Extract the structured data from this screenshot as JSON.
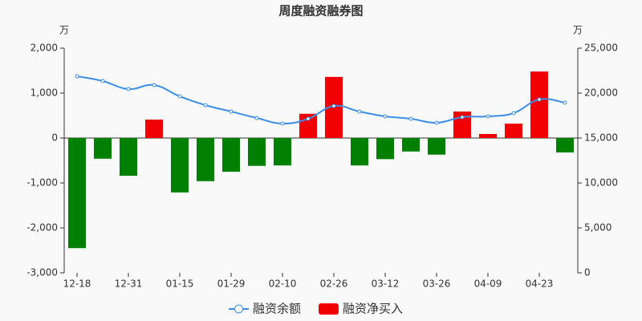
{
  "chart_data": {
    "type": "bar_line",
    "title": "周度融资融券图",
    "y_unit": "万",
    "y2_unit": "万",
    "categories": [
      "12-18",
      null,
      "12-31",
      null,
      "01-15",
      null,
      "01-29",
      null,
      "02-10",
      null,
      "02-26",
      null,
      "03-12",
      null,
      "03-26",
      null,
      "04-09",
      null,
      "04-23",
      null
    ],
    "series": [
      {
        "name": "融资余额",
        "type": "line",
        "axis": "y2",
        "color": "#3a8ee6",
        "values": [
          21870,
          21340,
          20450,
          20890,
          19640,
          18660,
          17950,
          17230,
          16610,
          17140,
          18570,
          17950,
          17410,
          17140,
          16700,
          17320,
          17410,
          17770,
          19290,
          18930
        ]
      },
      {
        "name": "融资净买入",
        "type": "bar",
        "color": "#f00000",
        "negative_color": "#008000",
        "values": [
          -2450,
          -460,
          -840,
          410,
          -1210,
          -960,
          -750,
          -620,
          -610,
          540,
          1360,
          -610,
          -470,
          -300,
          -370,
          590,
          90,
          320,
          1480,
          -320
        ]
      }
    ],
    "ylim": [
      -3000,
      2000
    ],
    "yticks": [
      {
        "value": -3000,
        "label": "-3,000"
      },
      {
        "value": -2000,
        "label": "-2,000"
      },
      {
        "value": -1000,
        "label": "-1,000"
      },
      0,
      {
        "value": 1000,
        "label": "1,000"
      },
      {
        "value": 2000,
        "label": "2,000"
      }
    ],
    "y2lim": [
      0,
      25000
    ],
    "y2ticks": [
      0,
      {
        "value": 5000,
        "label": "5,000"
      },
      {
        "value": 10000,
        "label": "10,000"
      },
      {
        "value": 15000,
        "label": "15,000"
      },
      {
        "value": 20000,
        "label": "20,000"
      },
      {
        "value": 25000,
        "label": "25,000"
      }
    ]
  }
}
